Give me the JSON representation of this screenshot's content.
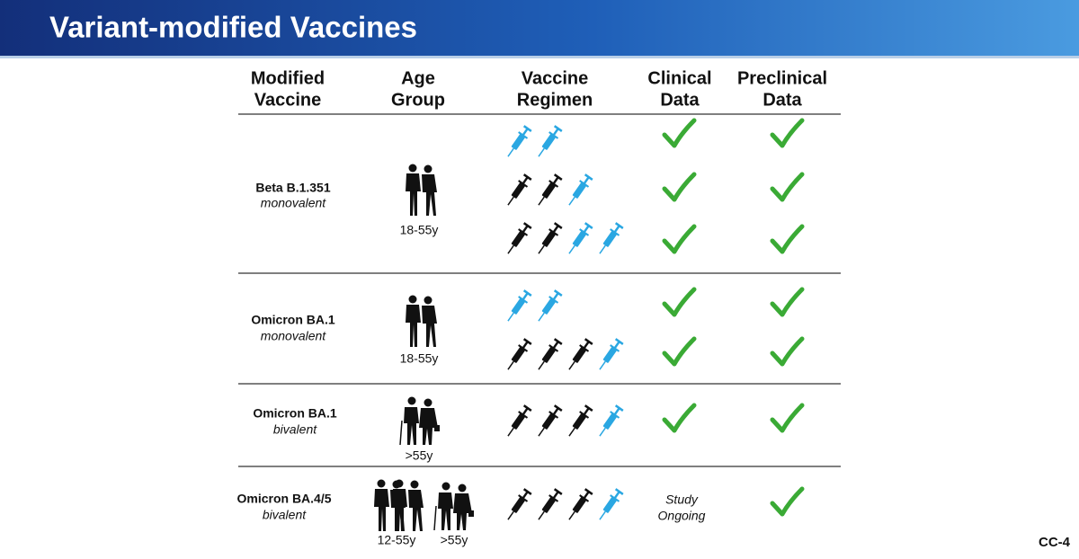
{
  "header": {
    "title": "Variant-modified Vaccines"
  },
  "table": {
    "columns": [
      [
        "Modified",
        "Vaccine"
      ],
      [
        "Age",
        "Group"
      ],
      [
        "Vaccine",
        "Regimen"
      ],
      [
        "Clinical",
        "Data"
      ],
      [
        "Preclinical",
        "Data"
      ]
    ],
    "rows": [
      {
        "vaccine": "Beta B.1.351",
        "valency": "monovalent",
        "age_groups": [
          "18-55y"
        ]
      },
      {
        "vaccine": "Omicron BA.1",
        "valency": "monovalent",
        "age_groups": [
          "18-55y"
        ]
      },
      {
        "vaccine": "Omicron BA.1",
        "valency": "bivalent",
        "age_groups": [
          ">55y"
        ]
      },
      {
        "vaccine": "Omicron BA.4/5",
        "valency": "bivalent",
        "age_groups": [
          "12-55y",
          ">55y"
        ],
        "clinical": [
          "Study",
          "Ongoing"
        ]
      }
    ]
  },
  "footer": {
    "slide_id": "CC-4"
  }
}
